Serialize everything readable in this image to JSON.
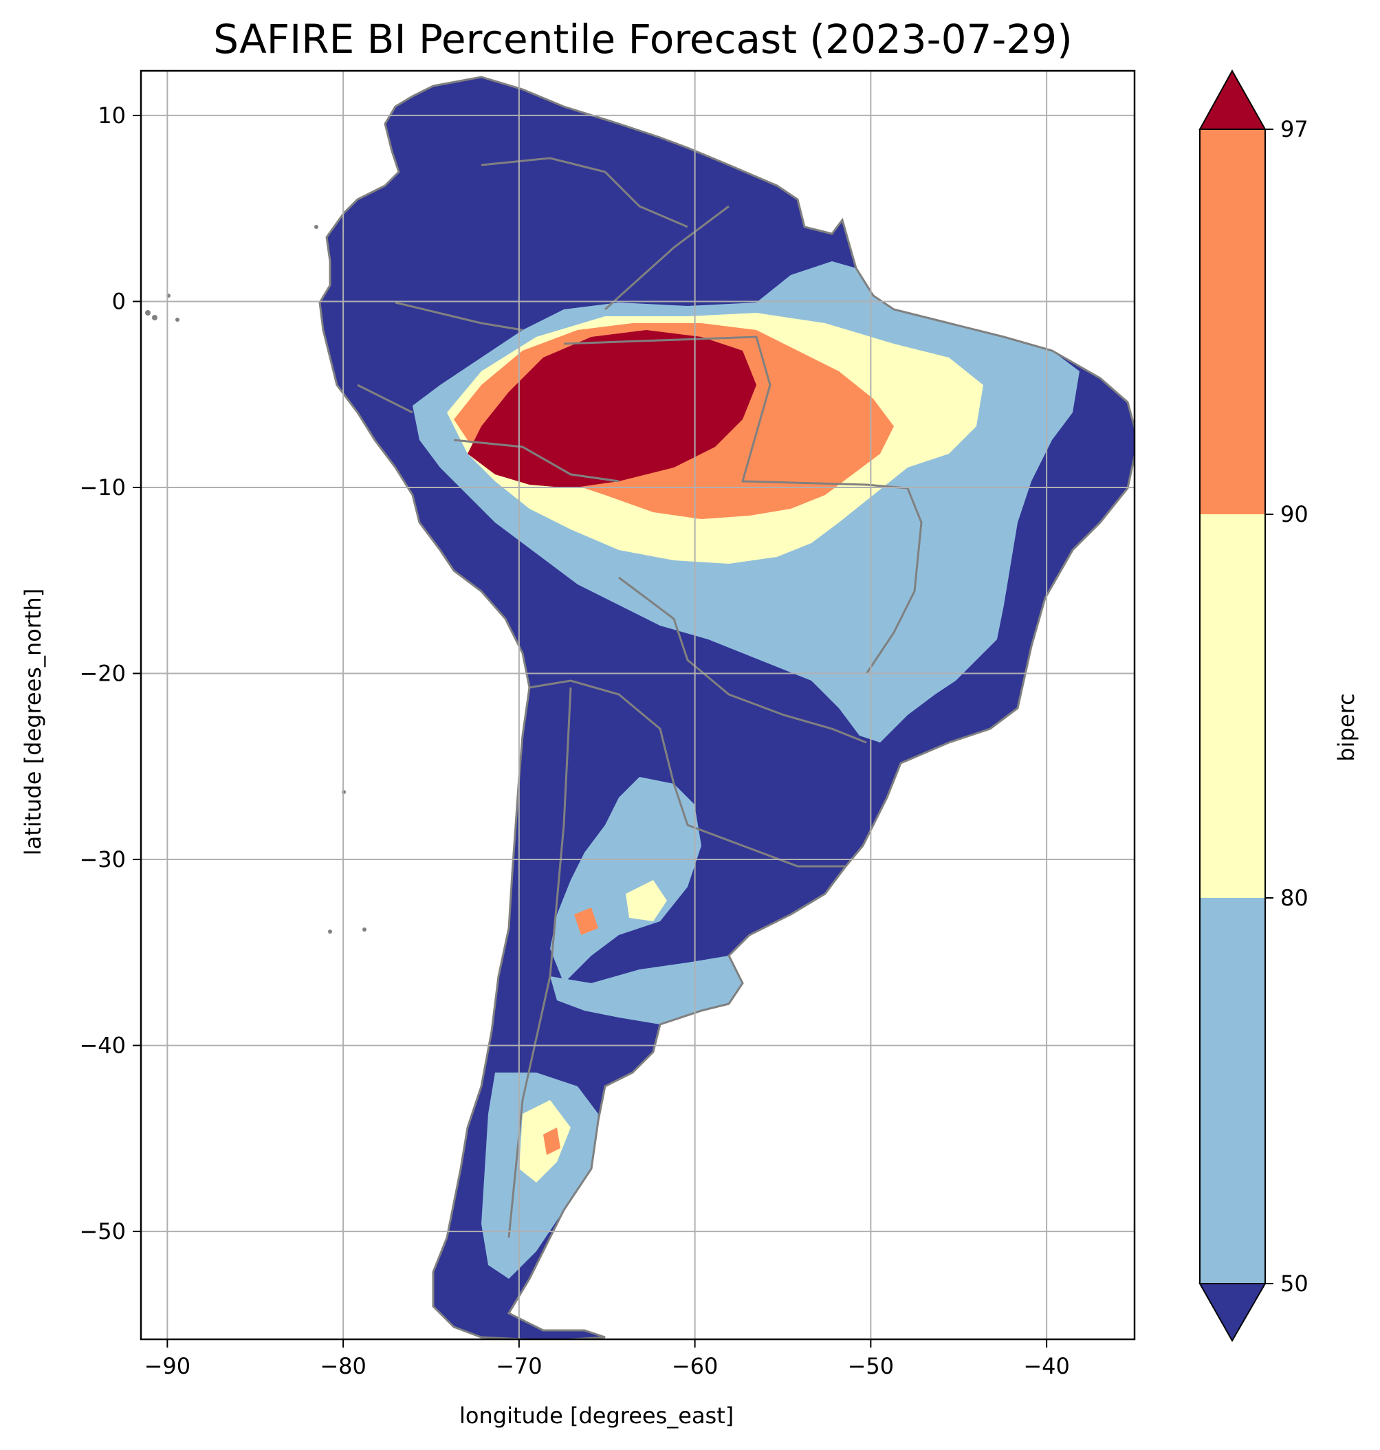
{
  "title": "SAFIRE BI Percentile Forecast (2023-07-29)",
  "xlabel": "longitude [degrees_east]",
  "ylabel": "latitude [degrees_north]",
  "colorbar": {
    "label": "biperc",
    "ticks": [
      "50",
      "80",
      "90",
      "97"
    ],
    "colors": {
      "below_50": "#313695",
      "50_80": "#91bfdb",
      "80_90": "#ffffbf",
      "90_97": "#fc8d59",
      "above_97": "#a50026"
    }
  },
  "map": {
    "region": "South America",
    "xticks": [
      "−90",
      "−80",
      "−70",
      "−60",
      "−50",
      "−40"
    ],
    "yticks": [
      "10",
      "0",
      "−10",
      "−20",
      "−30",
      "−40",
      "−50"
    ],
    "xlim": [
      -91.5,
      -35
    ],
    "ylim": [
      -55.8,
      12.4
    ],
    "grid": true,
    "border_color": "#808080"
  }
}
